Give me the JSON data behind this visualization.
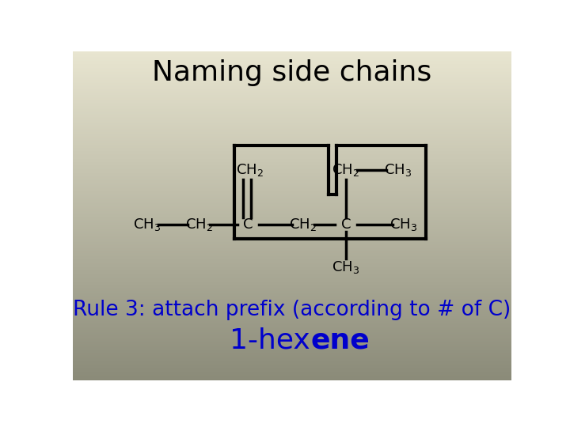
{
  "title": "Naming side chains",
  "bg_color_top": "#e8e5d0",
  "bg_color_bottom": "#8a8a78",
  "title_fontsize": 26,
  "title_color": "#000000",
  "rule_text": "Rule 3: attach prefix (according to # of C)",
  "rule_color": "#0000cc",
  "rule_fontsize": 19,
  "name_prefix": "1-hex",
  "name_suffix": "ene",
  "name_fontsize": 26,
  "name_color": "#0000cc",
  "lw": 2.5,
  "struct_color": "#000000",
  "fs_mol": 13
}
